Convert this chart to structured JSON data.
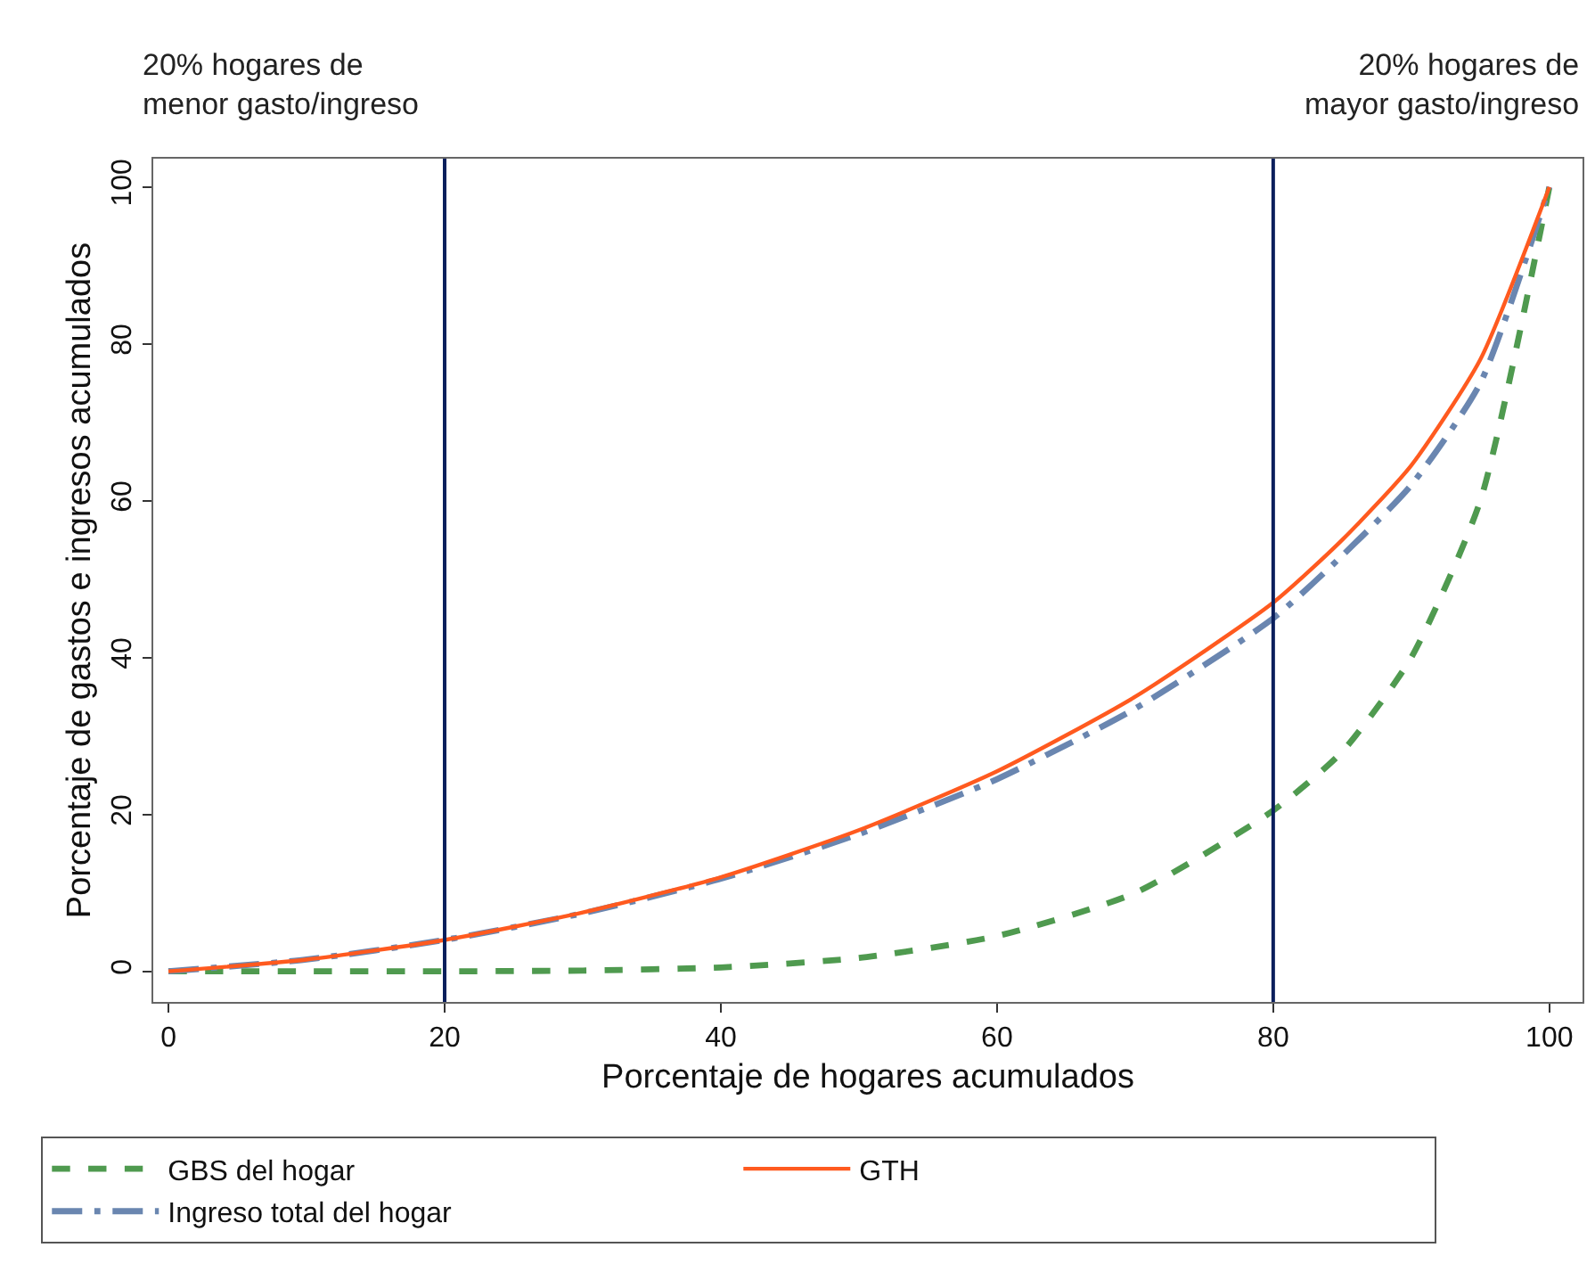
{
  "chart_data": {
    "type": "line",
    "xlabel": "Porcentaje de hogares acumulados",
    "ylabel": "Porcentaje de gastos e ingresos acumulados",
    "x": [
      0,
      10,
      20,
      30,
      40,
      50,
      60,
      70,
      80,
      85,
      90,
      95,
      100
    ],
    "series": [
      {
        "name": "GBS del hogar",
        "color": "#4f9a4f",
        "line_style": "dashed",
        "values": [
          0,
          0,
          0,
          0.1,
          0.5,
          1.7,
          4.5,
          10,
          20.5,
          28,
          40,
          60,
          100
        ]
      },
      {
        "name": "GTH",
        "color": "#ff5a1f",
        "line_style": "solid",
        "values": [
          0,
          1.5,
          4,
          7.5,
          12,
          18,
          25.5,
          35,
          47,
          55,
          64.5,
          78,
          100
        ]
      },
      {
        "name": "Ingreso total del hogar",
        "color": "#6a86b0",
        "line_style": "dashdot",
        "values": [
          0,
          1.5,
          4,
          7.4,
          11.8,
          17.5,
          24.5,
          33.5,
          45,
          53,
          62,
          75,
          100
        ]
      }
    ],
    "xlim": [
      -1.1,
      102.4
    ],
    "ylim": [
      -3.9,
      103.6
    ],
    "xticks": [
      0,
      20,
      40,
      60,
      80,
      100
    ],
    "yticks": [
      0,
      20,
      40,
      60,
      80,
      100
    ],
    "ref_lines": [
      {
        "axis": "x",
        "value": 20,
        "color": "#0a1f5c"
      },
      {
        "axis": "x",
        "value": 80,
        "color": "#0a1f5c"
      }
    ],
    "annotations": [
      "20% hogares de\nmenor gasto/ingreso",
      "20% hogares de\nmayor gasto/ingreso"
    ],
    "legend": "bottom",
    "grid": false
  }
}
